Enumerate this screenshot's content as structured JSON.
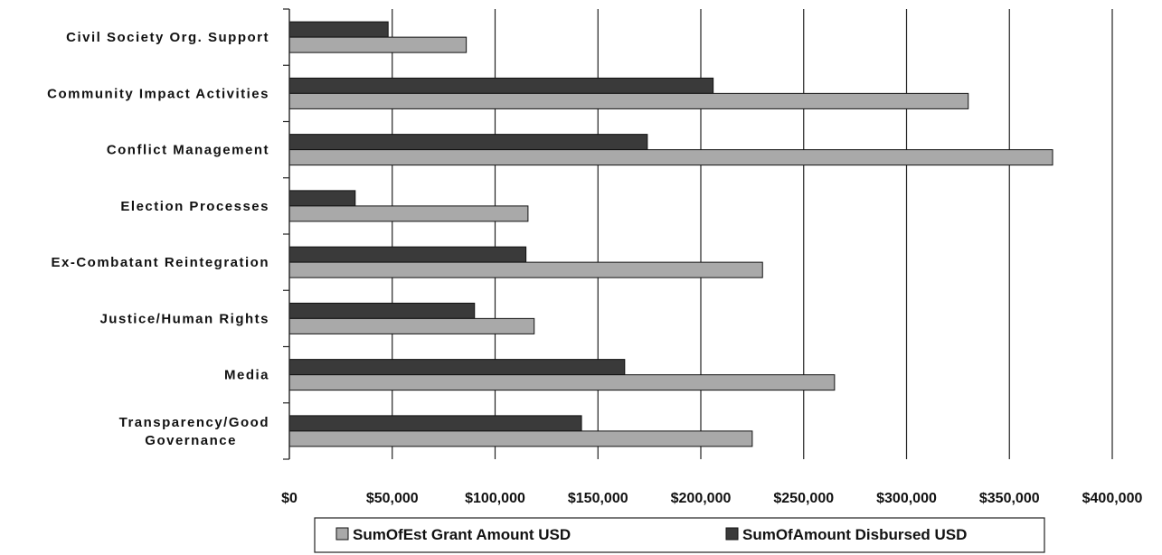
{
  "chart_data": {
    "type": "bar",
    "orientation": "horizontal",
    "categories": [
      "Civil Society Org. Support",
      "Community Impact Activities",
      "Conflict Management",
      "Election Processes",
      "Ex-Combatant Reintegration",
      "Justice/Human Rights",
      "Media",
      "Transparency/Good Governance"
    ],
    "series": [
      {
        "name": "SumOfAmount Disbursed USD",
        "color": "#3a3a3a",
        "values": [
          48000,
          206000,
          174000,
          32000,
          115000,
          90000,
          163000,
          142000
        ]
      },
      {
        "name": "SumOfEst Grant Amount USD",
        "color": "#a9a9a9",
        "values": [
          86000,
          330000,
          371000,
          116000,
          230000,
          119000,
          265000,
          225000
        ]
      }
    ],
    "x_ticks": [
      "$0",
      "$50,000",
      "$100,000",
      "$150,000",
      "$200,000",
      "$250,000",
      "$300,000",
      "$350,000",
      "$400,000"
    ],
    "xlim": [
      0,
      400000
    ],
    "grid": "vertical",
    "legend": {
      "placement": "bottom",
      "entries": [
        "SumOfEst Grant Amount USD",
        "SumOfAmount Disbursed USD"
      ]
    }
  }
}
